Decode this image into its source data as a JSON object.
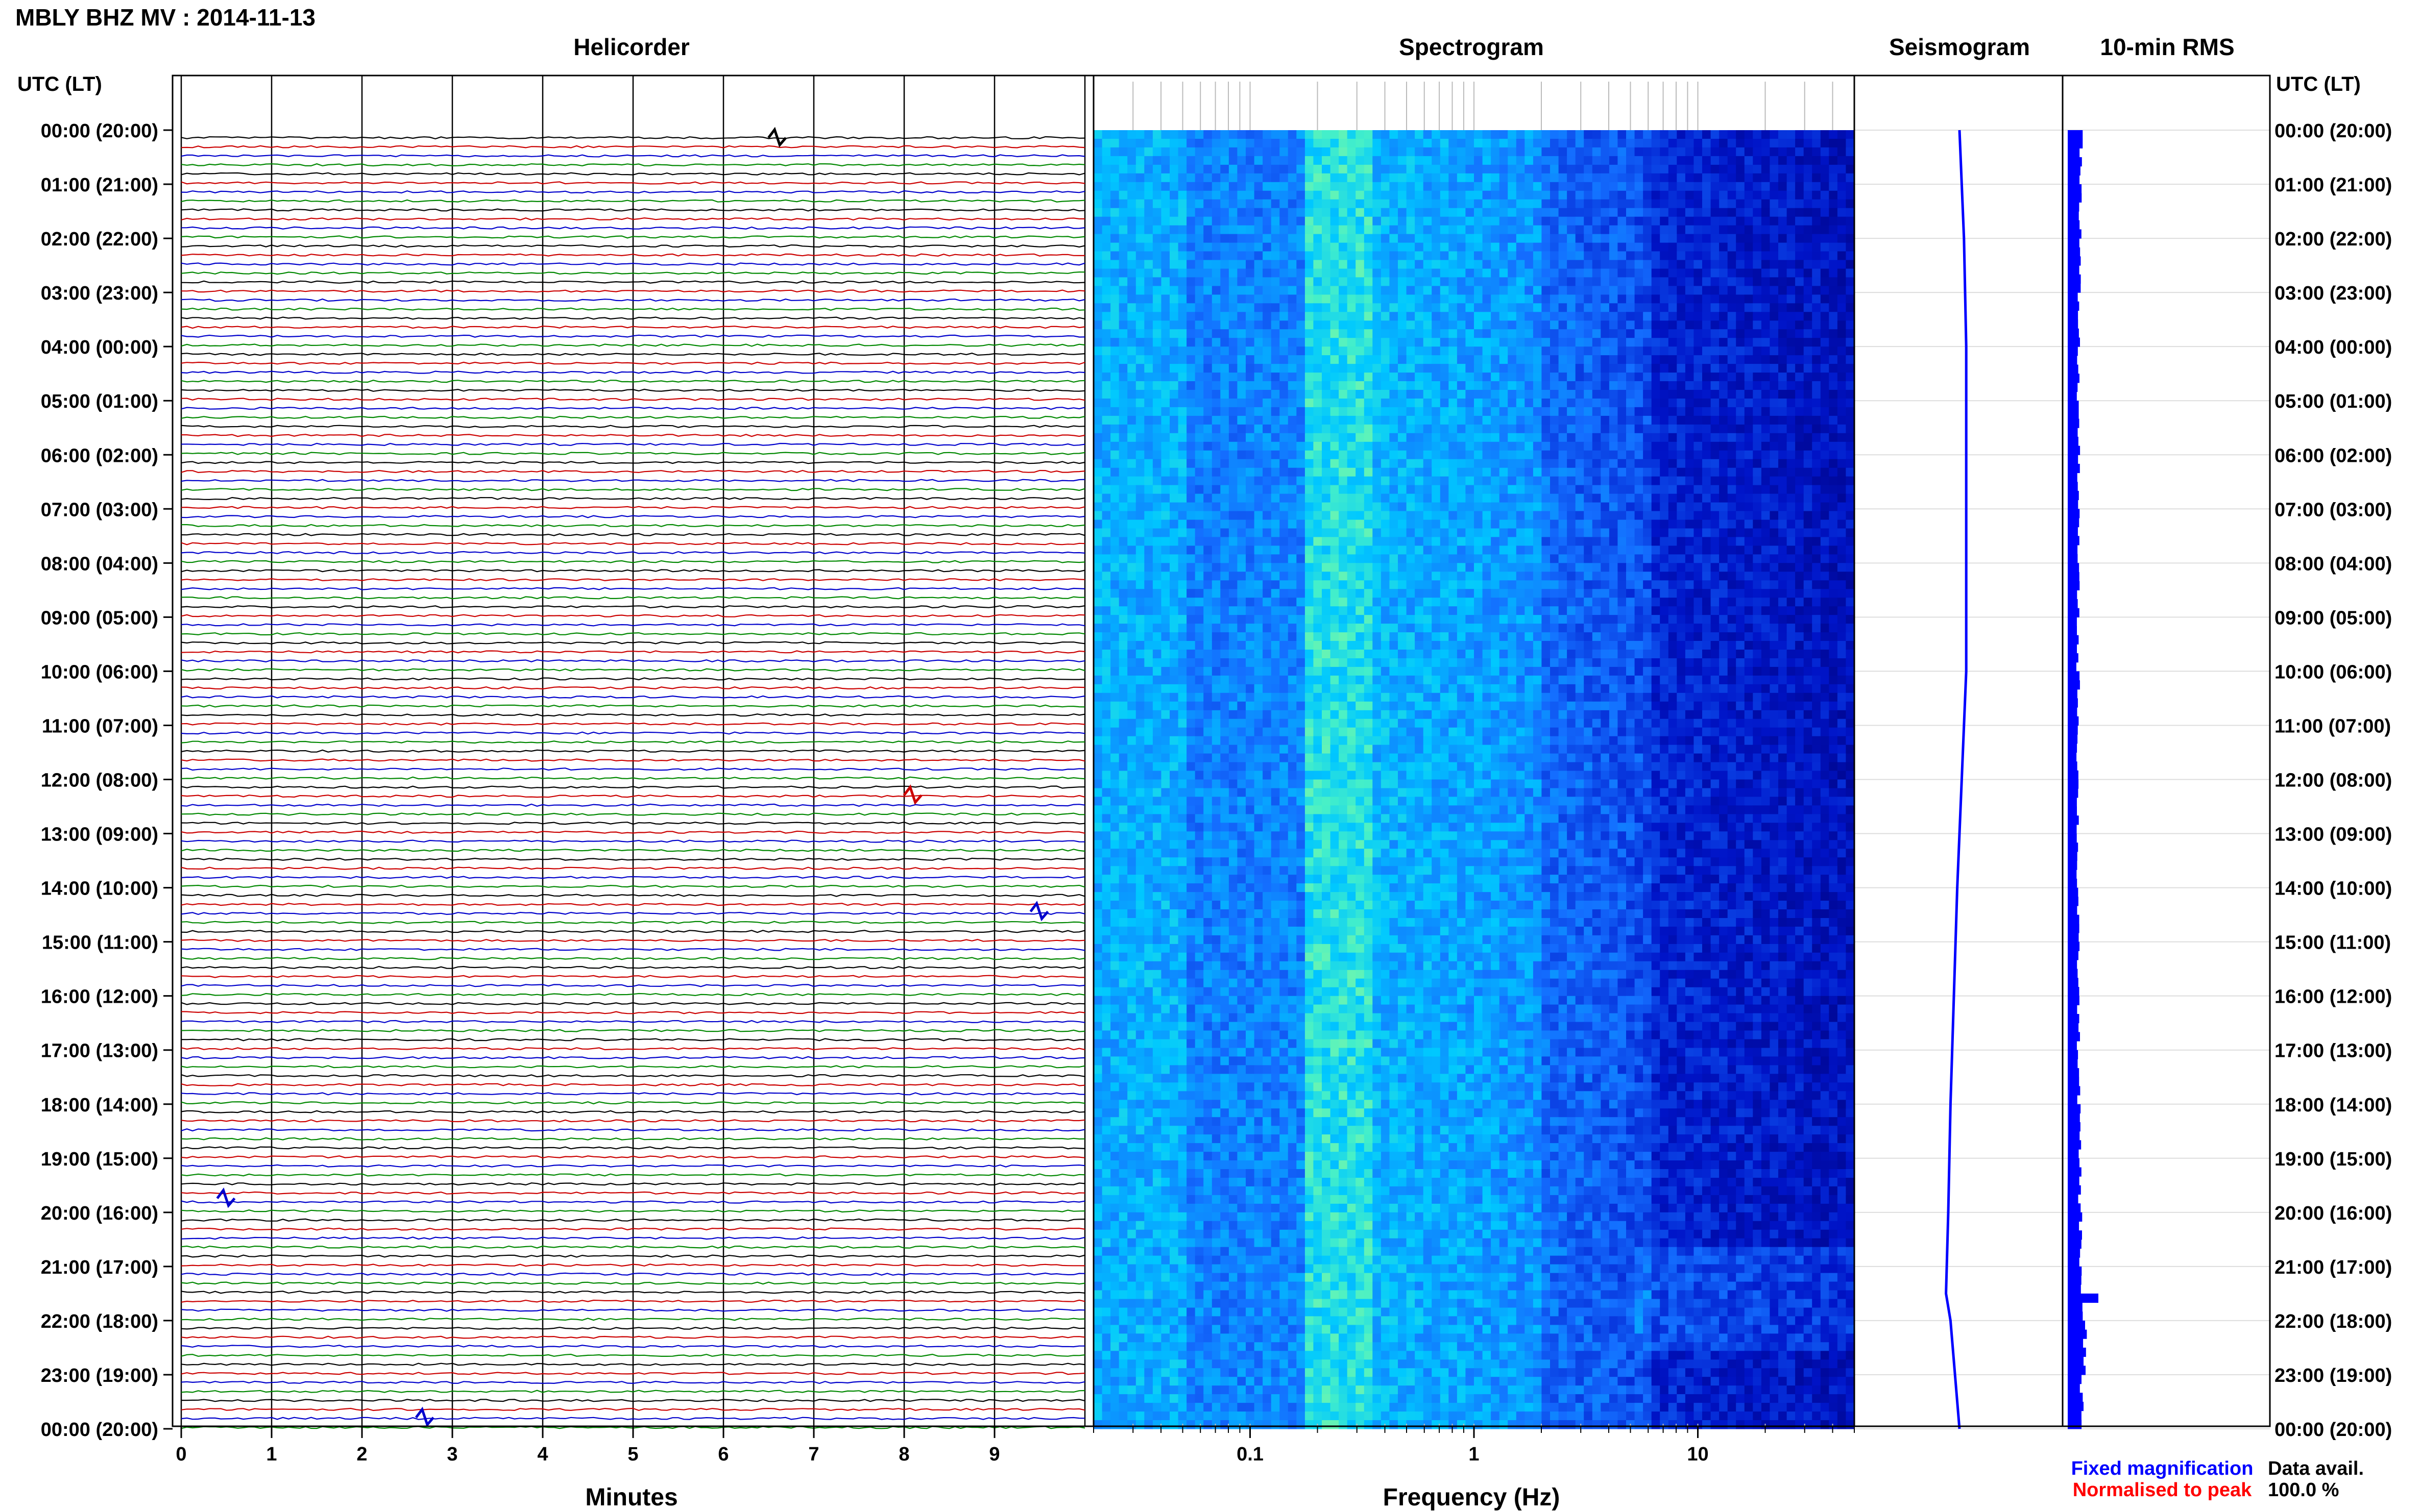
{
  "header": {
    "station_title": "MBLY BHZ MV : 2014-11-13",
    "utc_label_left": "UTC (LT)",
    "utc_label_right": "UTC (LT)"
  },
  "panels": {
    "helicorder_title": "Helicorder",
    "spectrogram_title": "Spectrogram",
    "seismogram_title": "Seismogram",
    "rms_title": "10-min RMS"
  },
  "axes": {
    "helicorder_xlabel": "Minutes",
    "spectrogram_xlabel": "Frequency (Hz)"
  },
  "legend": {
    "fixed_magnification": "Fixed magnification",
    "normalised_to_peak": "Normalised to peak",
    "data_avail_label": "Data avail.",
    "data_avail_value": "100.0 %"
  },
  "colors": {
    "helicorder_trace_cycle": [
      "#000000",
      "#cc0000",
      "#0000cc",
      "#008800"
    ],
    "fixed_magnification": "#0000ff",
    "normalised_to_peak": "#ff0000",
    "seismogram_line": "#0000ff",
    "rms_bars": "#0000ff",
    "spectrogram_low": "#00008b",
    "spectrogram_mid": "#1e90ff",
    "spectrogram_high": "#00ffff"
  },
  "chart_data": [
    {
      "type": "line",
      "panel": "helicorder",
      "xlabel": "Minutes",
      "x_ticks": [
        0,
        1,
        2,
        3,
        4,
        5,
        6,
        7,
        8,
        9
      ],
      "xlim": [
        0,
        10
      ],
      "time_labels": [
        "00:00 (20:00)",
        "01:00 (21:00)",
        "02:00 (22:00)",
        "03:00 (23:00)",
        "04:00 (00:00)",
        "05:00 (01:00)",
        "06:00 (02:00)",
        "07:00 (03:00)",
        "08:00 (04:00)",
        "09:00 (05:00)",
        "10:00 (06:00)",
        "11:00 (07:00)",
        "12:00 (08:00)",
        "13:00 (09:00)",
        "14:00 (10:00)",
        "15:00 (11:00)",
        "16:00 (12:00)",
        "17:00 (13:00)",
        "18:00 (14:00)",
        "19:00 (15:00)",
        "20:00 (16:00)",
        "21:00 (17:00)",
        "22:00 (18:00)",
        "23:00 (19:00)",
        "00:00 (20:00)"
      ],
      "events": [
        {
          "hour": 0.0,
          "minute": 6.6
        },
        {
          "hour": 12.15,
          "minute": 8.1
        },
        {
          "hour": 14.3,
          "minute": 9.5
        },
        {
          "hour": 19.6,
          "minute": 0.5
        },
        {
          "hour": 23.65,
          "minute": 2.7
        }
      ]
    },
    {
      "type": "heatmap",
      "panel": "spectrogram",
      "xlabel": "Frequency (Hz)",
      "x_scale": "log",
      "xlim": [
        0.02,
        50
      ],
      "x_tick_labels": [
        "0.1",
        "1",
        "10"
      ],
      "x_tick_values": [
        0.1,
        1,
        10
      ],
      "ylim_hours": [
        0,
        24
      ],
      "dominant_band_hz": [
        0.2,
        0.3
      ]
    },
    {
      "type": "line",
      "panel": "seismogram",
      "samples_hours": [
        0,
        2,
        4,
        6,
        8,
        10,
        12,
        14,
        16,
        18,
        20,
        21.5,
        22,
        24
      ],
      "offsets": [
        0.0,
        0.04,
        0.06,
        0.06,
        0.06,
        0.06,
        0.02,
        -0.02,
        -0.05,
        -0.08,
        -0.1,
        -0.12,
        -0.08,
        0.0
      ]
    },
    {
      "type": "bar",
      "panel": "10-min RMS",
      "orientation": "horizontal",
      "bin_minutes": 10,
      "hourly_level": [
        0.45,
        0.42,
        0.38,
        0.36,
        0.34,
        0.35,
        0.36,
        0.34,
        0.34,
        0.33,
        0.35,
        0.33,
        0.33,
        0.32,
        0.33,
        0.34,
        0.35,
        0.36,
        0.38,
        0.4,
        0.42,
        0.45,
        0.55,
        0.45
      ],
      "peak_bin": {
        "hour": 21.5,
        "level": 1.0
      }
    }
  ]
}
